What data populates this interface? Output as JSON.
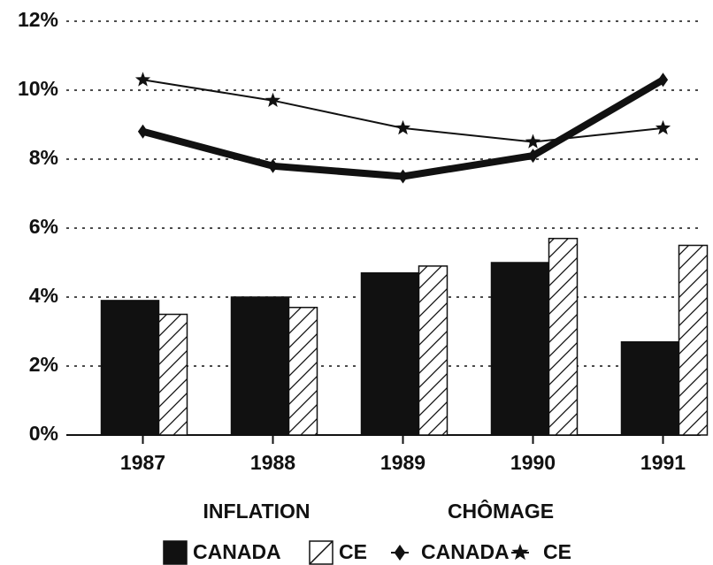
{
  "chart_data": {
    "type": "bar",
    "categories": [
      "1987",
      "1988",
      "1989",
      "1990",
      "1991"
    ],
    "series": [
      {
        "name": "CANADA",
        "type": "bar",
        "color": "#111111",
        "values": [
          3.9,
          4.0,
          4.7,
          5.0,
          2.7
        ]
      },
      {
        "name": "CE",
        "type": "bar",
        "color": "#ffffff",
        "hatch": true,
        "values": [
          3.5,
          3.7,
          4.9,
          5.7,
          5.5
        ]
      },
      {
        "name": "CANADA",
        "type": "line",
        "color": "#111111",
        "marker": "diamond",
        "values": [
          8.8,
          7.8,
          7.5,
          8.1,
          10.3
        ]
      },
      {
        "name": "CE",
        "type": "line",
        "color": "#111111",
        "marker": "star",
        "values": [
          10.3,
          9.7,
          8.9,
          8.5,
          8.9
        ]
      }
    ],
    "legend_groups": [
      "INFLATION",
      "CHÔMAGE"
    ],
    "ylim": [
      0,
      12
    ],
    "yticks": [
      {
        "value": 0,
        "label": "0%"
      },
      {
        "value": 2,
        "label": "2%"
      },
      {
        "value": 4,
        "label": "4%"
      },
      {
        "value": 6,
        "label": "6%"
      },
      {
        "value": 8,
        "label": "8%"
      },
      {
        "value": 10,
        "label": "10%"
      },
      {
        "value": 12,
        "label": "12%"
      }
    ],
    "grid": true
  }
}
